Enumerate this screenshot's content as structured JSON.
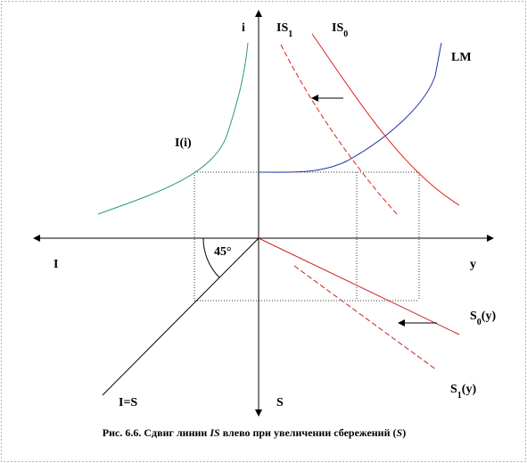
{
  "axes": {
    "vertical_top": "i",
    "vertical_bottom": "S",
    "horizontal_left": "I",
    "horizontal_right": "y"
  },
  "curves": {
    "is1": {
      "main": "IS",
      "sub": "1"
    },
    "is0": {
      "main": "IS",
      "sub": "0"
    },
    "lm": {
      "main": "LM"
    },
    "investment": {
      "main": "I(i)"
    },
    "s0": {
      "main": "S",
      "sub": "0",
      "tail": "(y)"
    },
    "s1": {
      "main": "S",
      "sub": "1",
      "tail": "(y)"
    },
    "equality": {
      "main": "I=S"
    }
  },
  "angle": "45°",
  "caption": {
    "prefix": "Рис.  6.6. Сдвиг линии ",
    "italic1": "IS",
    "middle": " влево при увеличении сбережений (",
    "italic2": "S",
    "suffix": ")"
  }
}
